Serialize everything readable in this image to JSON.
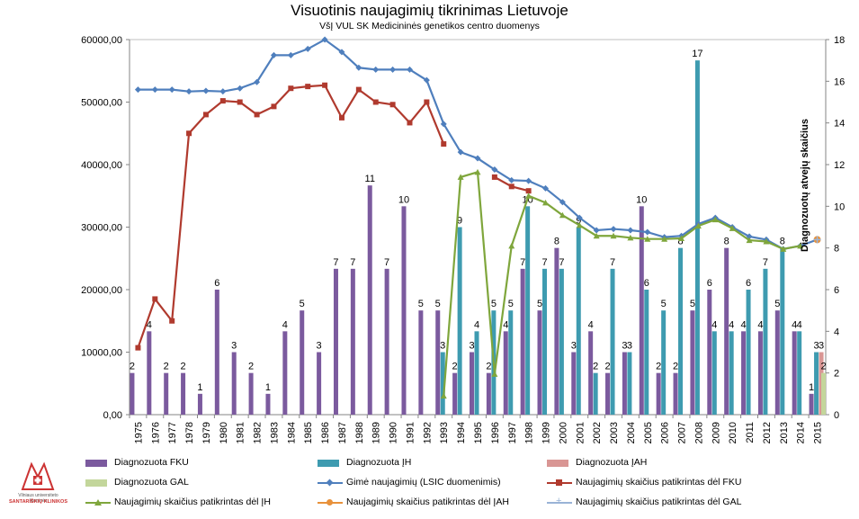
{
  "chart_data": {
    "type": "bar+line",
    "title": "Visuotinis naujagimių tikrinimas Lietuvoje",
    "subtitle": "VšĮ VUL SK Medicininės  genetikos centro duomenys",
    "right_axis_label": "Diagnozuotų atvejų skaičius",
    "years": [
      "1975",
      "1976",
      "1977",
      "1978",
      "1979",
      "1980",
      "1981",
      "1982",
      "1983",
      "1984",
      "1985",
      "1986",
      "1987",
      "1988",
      "1989",
      "1990",
      "1991",
      "1992",
      "1993",
      "1994",
      "1995",
      "1996",
      "1997",
      "1998",
      "1999",
      "2000",
      "2001",
      "2002",
      "2003",
      "2004",
      "2005",
      "2006",
      "2007",
      "2008",
      "2009",
      "2010",
      "2011",
      "2012",
      "2013",
      "2014",
      "2015"
    ],
    "left_axis": {
      "ylim": [
        0,
        60000
      ],
      "ticks": [
        "0,00",
        "10000,00",
        "20000,00",
        "30000,00",
        "40000,00",
        "50000,00",
        "60000,00"
      ],
      "tick_values": [
        0,
        10000,
        20000,
        30000,
        40000,
        50000,
        60000
      ]
    },
    "right_axis": {
      "ylim": [
        0,
        18
      ],
      "ticks": [
        "0",
        "2",
        "4",
        "6",
        "8",
        "10",
        "12",
        "14",
        "16",
        "18"
      ],
      "tick_values": [
        0,
        2,
        4,
        6,
        8,
        10,
        12,
        14,
        16,
        18
      ]
    },
    "bar_series": [
      {
        "name": "Diagnozuota FKU",
        "color": "#7b5a9e",
        "values": [
          2,
          4,
          2,
          2,
          1,
          6,
          3,
          2,
          1,
          4,
          5,
          3,
          7,
          7,
          11,
          7,
          10,
          5,
          5,
          2,
          3,
          2,
          4,
          7,
          5,
          8,
          3,
          4,
          2,
          3,
          10,
          2,
          2,
          5,
          6,
          8,
          4,
          4,
          5,
          4,
          1
        ]
      },
      {
        "name": "Diagnozuota ĮH",
        "color": "#3e9bb0",
        "values": [
          null,
          null,
          null,
          null,
          null,
          null,
          null,
          null,
          null,
          null,
          null,
          null,
          null,
          null,
          null,
          null,
          null,
          null,
          3,
          9,
          4,
          5,
          5,
          10,
          7,
          7,
          9,
          2,
          7,
          3,
          6,
          5,
          8,
          17,
          4,
          4,
          6,
          7,
          8,
          4,
          3
        ]
      },
      {
        "name": "Diagnozuota ĮAH",
        "color": "#d99694",
        "values": [
          null,
          null,
          null,
          null,
          null,
          null,
          null,
          null,
          null,
          null,
          null,
          null,
          null,
          null,
          null,
          null,
          null,
          null,
          null,
          null,
          null,
          null,
          null,
          null,
          null,
          null,
          null,
          null,
          null,
          null,
          null,
          null,
          null,
          null,
          null,
          null,
          null,
          null,
          null,
          null,
          3
        ]
      },
      {
        "name": "Diagnozuota GAL",
        "color": "#c3d69b",
        "values": [
          null,
          null,
          null,
          null,
          null,
          null,
          null,
          null,
          null,
          null,
          null,
          null,
          null,
          null,
          null,
          null,
          null,
          null,
          null,
          null,
          null,
          null,
          null,
          null,
          null,
          null,
          null,
          null,
          null,
          null,
          null,
          null,
          null,
          null,
          null,
          null,
          null,
          null,
          null,
          null,
          2
        ]
      }
    ],
    "line_series": [
      {
        "name": "Gimė  naujagimių (LSIC duomenimis)",
        "color": "#4f7fbd",
        "marker": "diamond",
        "values": [
          52000,
          52000,
          52000,
          51700,
          51800,
          51700,
          52200,
          53200,
          57500,
          57500,
          58500,
          60000,
          58000,
          55500,
          55200,
          55200,
          55200,
          53500,
          46500,
          42000,
          41000,
          39200,
          37500,
          37400,
          36200,
          34000,
          31500,
          29500,
          29700,
          29500,
          29200,
          28400,
          28600,
          30500,
          31500,
          30000,
          28500,
          28000,
          26500,
          27000,
          28000
        ]
      },
      {
        "name": "Naujagimių skaičius patikrintas dėl FKU",
        "color": "#b03a2e",
        "marker": "square",
        "values": [
          10700,
          18500,
          15000,
          45000,
          48000,
          50200,
          50000,
          48000,
          49300,
          52200,
          52500,
          52700,
          47500,
          52000,
          50000,
          49600,
          46700,
          50000,
          43300,
          null,
          null,
          38000,
          36500,
          35800,
          null,
          null,
          null,
          null,
          null,
          null,
          null,
          null,
          null,
          null,
          null,
          null,
          null,
          null,
          null,
          null,
          null
        ]
      },
      {
        "name": "Naujagimių skaičius patikrintas dėl ĮH",
        "color": "#7fa63c",
        "marker": "triangle",
        "values": [
          null,
          null,
          null,
          null,
          null,
          null,
          null,
          null,
          null,
          null,
          null,
          null,
          null,
          null,
          null,
          null,
          null,
          null,
          3000,
          38000,
          38800,
          6500,
          27000,
          35000,
          33900,
          31900,
          30300,
          28600,
          28600,
          28300,
          28100,
          28100,
          28200,
          30200,
          31200,
          29800,
          27900,
          27700,
          26500,
          27000,
          null
        ]
      },
      {
        "name": "Naujagimių skaičius patikrintas dėl ĮAH",
        "color": "#e8913a",
        "marker": "circle",
        "values": [
          null,
          null,
          null,
          null,
          null,
          null,
          null,
          null,
          null,
          null,
          null,
          null,
          null,
          null,
          null,
          null,
          null,
          null,
          null,
          null,
          null,
          null,
          null,
          null,
          null,
          null,
          null,
          null,
          null,
          null,
          null,
          null,
          null,
          null,
          null,
          null,
          null,
          null,
          null,
          null,
          28000
        ]
      },
      {
        "name": "Naujagimių skaičius patikrintas dėl GAL",
        "color": "#99b3d6",
        "marker": "plus",
        "values": [
          null,
          null,
          null,
          null,
          null,
          null,
          null,
          null,
          null,
          null,
          null,
          null,
          null,
          null,
          null,
          null,
          null,
          null,
          null,
          null,
          null,
          null,
          null,
          null,
          null,
          null,
          null,
          null,
          null,
          null,
          null,
          null,
          null,
          null,
          null,
          null,
          null,
          null,
          null,
          null,
          28000
        ]
      }
    ],
    "legend_position": "bottom"
  },
  "logo": {
    "line1": "Vilniaus universiteto ligoninės",
    "line2": "SANTARIŠKIŲ KLINIKOS"
  }
}
